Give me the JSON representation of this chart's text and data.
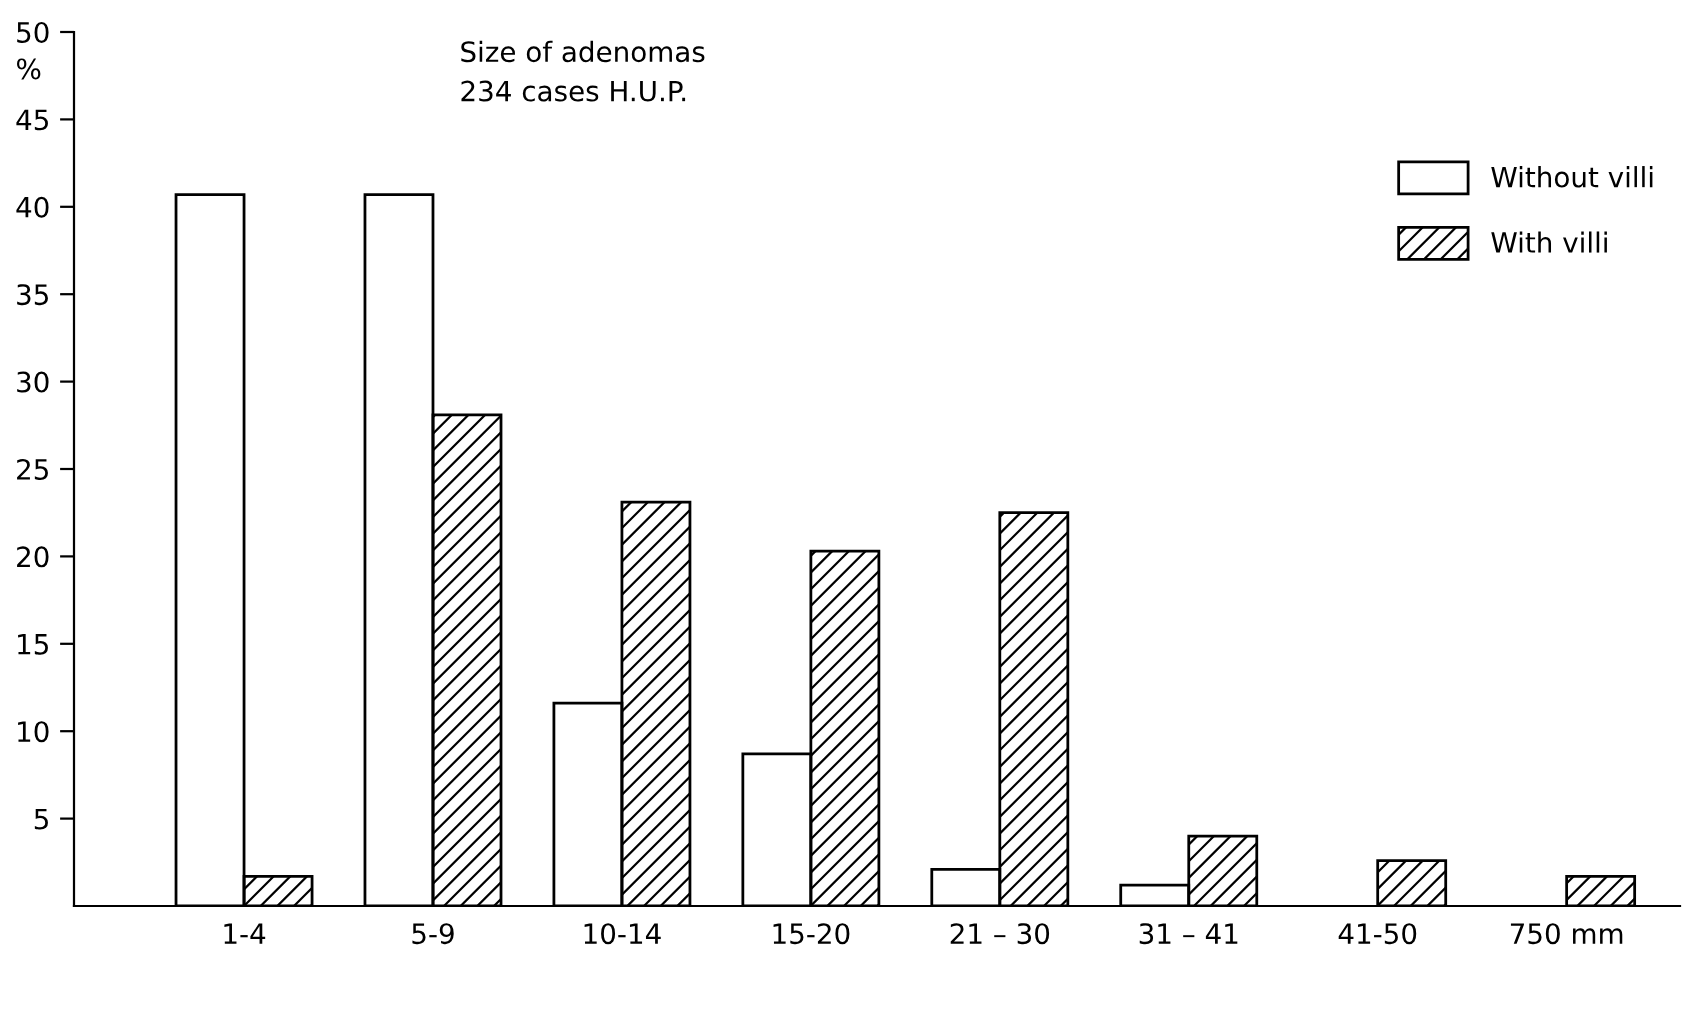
{
  "chart_data": {
    "type": "bar",
    "title": "Size of adenomas",
    "subtitle": "234 cases H.U.P.",
    "ylabel": "%",
    "categories": [
      "1-4",
      "5-9",
      "10-14",
      "15-20",
      "21 – 30",
      "31 – 41",
      "41-50",
      "750 mm"
    ],
    "series": [
      {
        "name": "Without villi",
        "color": "#ffffff",
        "values": [
          40.7,
          40.7,
          11.6,
          8.7,
          2.1,
          1.2,
          null,
          null
        ]
      },
      {
        "name": "With villi",
        "color": "#000000",
        "values": [
          1.7,
          28.1,
          23.1,
          20.3,
          22.5,
          4.0,
          2.6,
          1.7
        ]
      }
    ],
    "ylim": [
      0,
      50
    ],
    "yticks": [
      5,
      10,
      15,
      20,
      25,
      30,
      35,
      40,
      45,
      50
    ],
    "grid": false,
    "legend": "top right"
  }
}
